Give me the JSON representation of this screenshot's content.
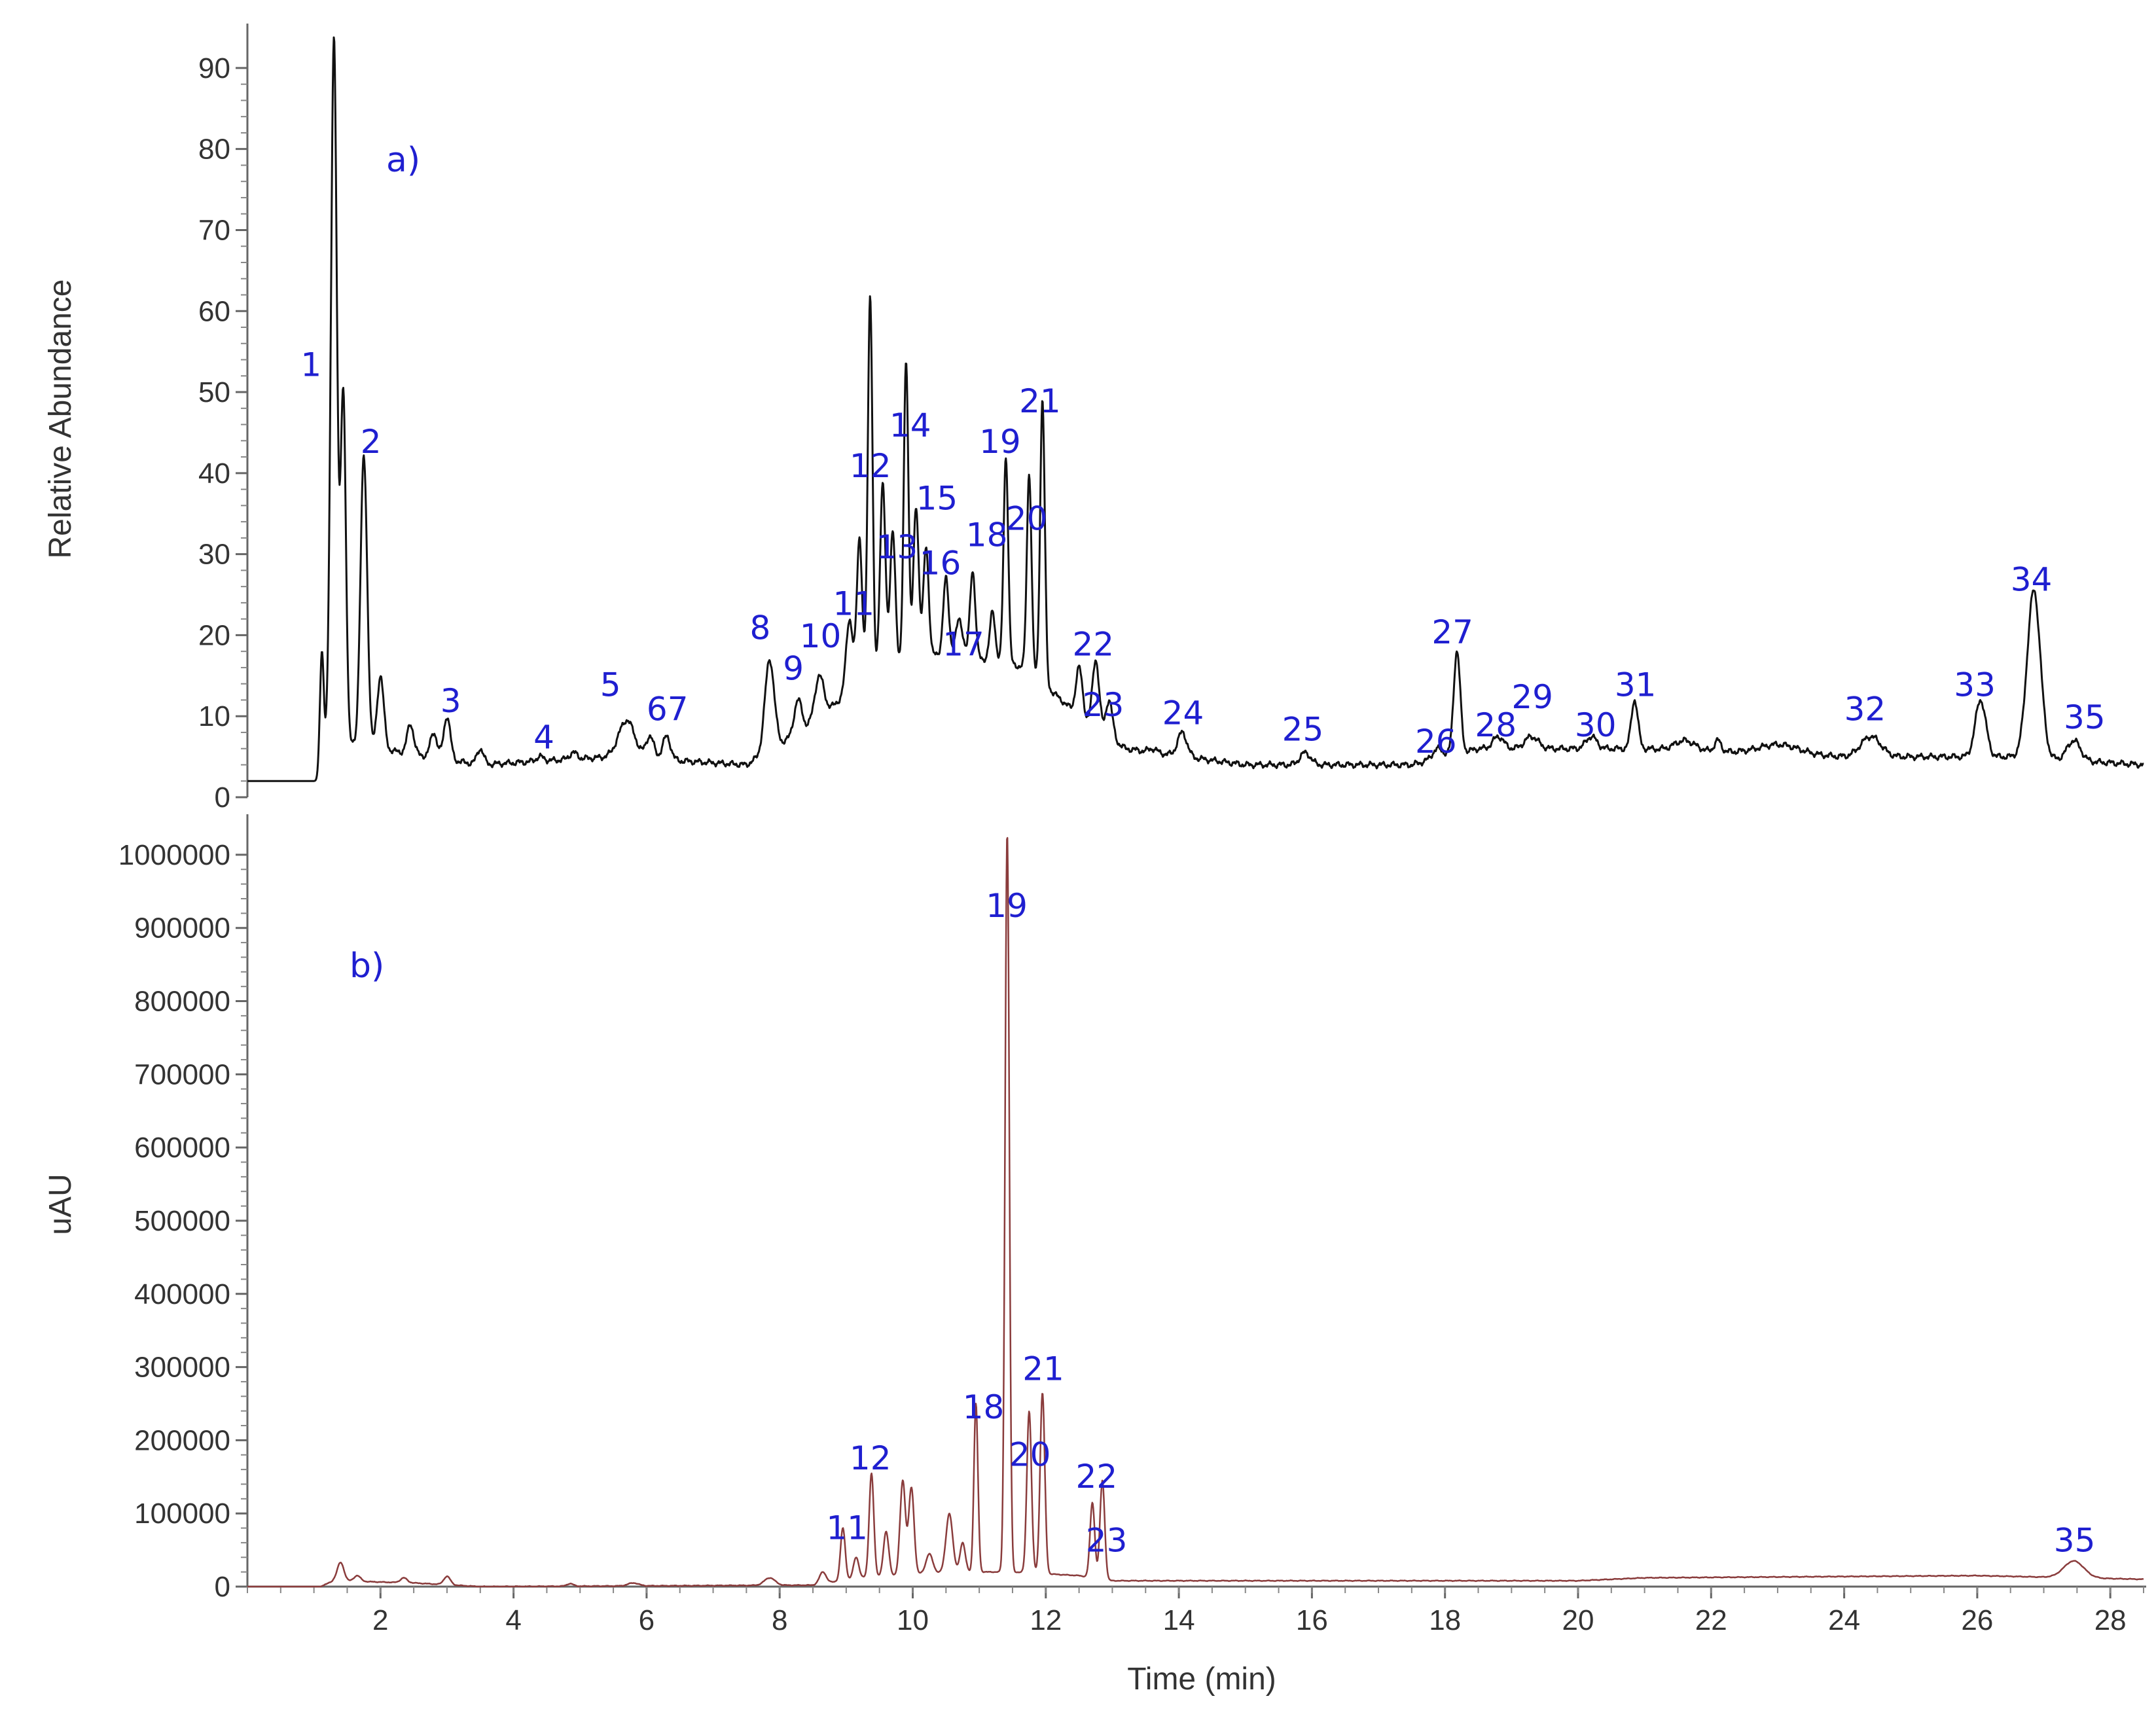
{
  "chart_data": [
    {
      "panel": "a)",
      "type": "line",
      "ylabel": "Relative Abundance",
      "xlabel": "",
      "xlim": [
        0,
        28.5
      ],
      "ylim": [
        0,
        95
      ],
      "ytick_values": [
        0,
        10,
        20,
        30,
        40,
        50,
        60,
        70,
        80,
        90
      ],
      "ytick_labels": [
        "0",
        "10",
        "20",
        "30",
        "40",
        "50",
        "60",
        "70",
        "80",
        "90"
      ],
      "line_color": "#111111",
      "baseline": [
        [
          0,
          2
        ],
        [
          1.1,
          2
        ],
        [
          1.2,
          7
        ],
        [
          3.5,
          4
        ],
        [
          5.5,
          5
        ],
        [
          7.5,
          4
        ],
        [
          8.5,
          9
        ],
        [
          9.3,
          15
        ],
        [
          10.5,
          18
        ],
        [
          11.7,
          16
        ],
        [
          12.5,
          10
        ],
        [
          13.2,
          6
        ],
        [
          15,
          4
        ],
        [
          17.5,
          4
        ],
        [
          18.5,
          6
        ],
        [
          21,
          6
        ],
        [
          24,
          5
        ],
        [
          26.5,
          5
        ],
        [
          28.5,
          4
        ]
      ],
      "peaks": [
        {
          "x": 1.12,
          "y": 18,
          "w": 0.03
        },
        {
          "x": 1.3,
          "y": 94,
          "w": 0.045
        },
        {
          "x": 1.44,
          "y": 50,
          "w": 0.04
        },
        {
          "x": 1.75,
          "y": 42,
          "w": 0.05
        },
        {
          "x": 2.0,
          "y": 15,
          "w": 0.05
        },
        {
          "x": 2.45,
          "y": 9,
          "w": 0.05
        },
        {
          "x": 2.8,
          "y": 8,
          "w": 0.05
        },
        {
          "x": 3.0,
          "y": 10,
          "w": 0.05
        },
        {
          "x": 3.5,
          "y": 6,
          "w": 0.05
        },
        {
          "x": 4.4,
          "y": 5,
          "w": 0.06
        },
        {
          "x": 4.9,
          "y": 5.5,
          "w": 0.06
        },
        {
          "x": 5.7,
          "y": 9.5,
          "w": 0.12
        },
        {
          "x": 6.05,
          "y": 7.5,
          "w": 0.06
        },
        {
          "x": 6.3,
          "y": 7.5,
          "w": 0.06
        },
        {
          "x": 7.85,
          "y": 17,
          "w": 0.07
        },
        {
          "x": 8.28,
          "y": 12,
          "w": 0.06
        },
        {
          "x": 8.6,
          "y": 15,
          "w": 0.07
        },
        {
          "x": 9.05,
          "y": 22,
          "w": 0.05
        },
        {
          "x": 9.2,
          "y": 32,
          "w": 0.04
        },
        {
          "x": 9.36,
          "y": 62,
          "w": 0.035
        },
        {
          "x": 9.55,
          "y": 39,
          "w": 0.04
        },
        {
          "x": 9.7,
          "y": 33,
          "w": 0.04
        },
        {
          "x": 9.9,
          "y": 54,
          "w": 0.035
        },
        {
          "x": 10.05,
          "y": 36,
          "w": 0.04
        },
        {
          "x": 10.2,
          "y": 31,
          "w": 0.04
        },
        {
          "x": 10.5,
          "y": 27,
          "w": 0.04
        },
        {
          "x": 10.7,
          "y": 22,
          "w": 0.05
        },
        {
          "x": 10.9,
          "y": 28,
          "w": 0.04
        },
        {
          "x": 11.2,
          "y": 23,
          "w": 0.04
        },
        {
          "x": 11.4,
          "y": 42,
          "w": 0.035
        },
        {
          "x": 11.75,
          "y": 40,
          "w": 0.035
        },
        {
          "x": 11.95,
          "y": 49,
          "w": 0.035
        },
        {
          "x": 12.5,
          "y": 16,
          "w": 0.05
        },
        {
          "x": 12.75,
          "y": 17,
          "w": 0.05
        },
        {
          "x": 12.95,
          "y": 12,
          "w": 0.05
        },
        {
          "x": 13.6,
          "y": 6,
          "w": 0.06
        },
        {
          "x": 14.05,
          "y": 8,
          "w": 0.07
        },
        {
          "x": 15.9,
          "y": 5.5,
          "w": 0.08
        },
        {
          "x": 17.9,
          "y": 6,
          "w": 0.08
        },
        {
          "x": 18.18,
          "y": 18,
          "w": 0.05
        },
        {
          "x": 18.8,
          "y": 7.5,
          "w": 0.08
        },
        {
          "x": 19.3,
          "y": 7.5,
          "w": 0.1
        },
        {
          "x": 20.2,
          "y": 7.5,
          "w": 0.08
        },
        {
          "x": 20.85,
          "y": 12,
          "w": 0.05
        },
        {
          "x": 21.6,
          "y": 7,
          "w": 0.15
        },
        {
          "x": 22.1,
          "y": 7,
          "w": 0.05
        },
        {
          "x": 23.0,
          "y": 6.5,
          "w": 0.3
        },
        {
          "x": 24.4,
          "y": 7.5,
          "w": 0.15
        },
        {
          "x": 26.05,
          "y": 12,
          "w": 0.08
        },
        {
          "x": 26.85,
          "y": 25.5,
          "w": 0.1
        },
        {
          "x": 27.45,
          "y": 7,
          "w": 0.1
        }
      ],
      "peak_labels": [
        {
          "text": "1",
          "x": 0.8,
          "y": 52
        },
        {
          "text": "2",
          "x": 1.7,
          "y": 42.5
        },
        {
          "text": "3",
          "x": 2.9,
          "y": 10.5
        },
        {
          "text": "4",
          "x": 4.3,
          "y": 6
        },
        {
          "text": "5",
          "x": 5.3,
          "y": 12.5
        },
        {
          "text": "67",
          "x": 6.0,
          "y": 9.5
        },
        {
          "text": "8",
          "x": 7.55,
          "y": 19.5
        },
        {
          "text": "9",
          "x": 8.05,
          "y": 14.5
        },
        {
          "text": "10",
          "x": 8.3,
          "y": 18.5
        },
        {
          "text": "11",
          "x": 8.8,
          "y": 22.5
        },
        {
          "text": "12",
          "x": 9.05,
          "y": 39.5
        },
        {
          "text": "13",
          "x": 9.45,
          "y": 29.5
        },
        {
          "text": "14",
          "x": 9.65,
          "y": 44.5
        },
        {
          "text": "15",
          "x": 10.05,
          "y": 35.5
        },
        {
          "text": "16",
          "x": 10.1,
          "y": 27.5
        },
        {
          "text": "17",
          "x": 10.45,
          "y": 17.5
        },
        {
          "text": "18",
          "x": 10.8,
          "y": 31
        },
        {
          "text": "19",
          "x": 11.0,
          "y": 42.5
        },
        {
          "text": "20",
          "x": 11.4,
          "y": 33
        },
        {
          "text": "21",
          "x": 11.6,
          "y": 47.5
        },
        {
          "text": "22",
          "x": 12.4,
          "y": 17.5
        },
        {
          "text": "23",
          "x": 12.55,
          "y": 10
        },
        {
          "text": "24",
          "x": 13.75,
          "y": 9
        },
        {
          "text": "25",
          "x": 15.55,
          "y": 7
        },
        {
          "text": "26",
          "x": 17.55,
          "y": 5.5
        },
        {
          "text": "27",
          "x": 17.8,
          "y": 19
        },
        {
          "text": "28",
          "x": 18.45,
          "y": 7.5
        },
        {
          "text": "29",
          "x": 19.0,
          "y": 11
        },
        {
          "text": "30",
          "x": 19.95,
          "y": 7.5
        },
        {
          "text": "31",
          "x": 20.55,
          "y": 12.5
        },
        {
          "text": "32",
          "x": 24.0,
          "y": 9.5
        },
        {
          "text": "33",
          "x": 25.65,
          "y": 12.5
        },
        {
          "text": "34",
          "x": 26.5,
          "y": 25.5
        },
        {
          "text": "35",
          "x": 27.3,
          "y": 8.5
        }
      ]
    },
    {
      "panel": "b)",
      "type": "line",
      "ylabel": "uAU",
      "xlabel": "Time (min)",
      "xlim": [
        0,
        28.5
      ],
      "ylim": [
        0,
        1050000
      ],
      "xtick_values": [
        2,
        4,
        6,
        8,
        10,
        12,
        14,
        16,
        18,
        20,
        22,
        24,
        26,
        28
      ],
      "xtick_labels": [
        "2",
        "4",
        "6",
        "8",
        "10",
        "12",
        "14",
        "16",
        "18",
        "20",
        "22",
        "24",
        "26",
        "28"
      ],
      "ytick_values": [
        0,
        100000,
        200000,
        300000,
        400000,
        500000,
        600000,
        700000,
        800000,
        900000,
        1000000
      ],
      "ytick_labels": [
        "0",
        "100000",
        "200000",
        "300000",
        "400000",
        "500000",
        "600000",
        "700000",
        "800000",
        "900000",
        "1000000"
      ],
      "line_color": "#8a3c3c",
      "baseline": [
        [
          0,
          0
        ],
        [
          1.1,
          0
        ],
        [
          1.3,
          8000
        ],
        [
          2.5,
          5000
        ],
        [
          3.5,
          0
        ],
        [
          8.5,
          2000
        ],
        [
          9.2,
          12000
        ],
        [
          10.5,
          20000
        ],
        [
          11.5,
          20000
        ],
        [
          12.5,
          15000
        ],
        [
          13.0,
          8000
        ],
        [
          14,
          8000
        ],
        [
          20,
          8000
        ],
        [
          21,
          12000
        ],
        [
          26,
          15000
        ],
        [
          28.5,
          10000
        ]
      ],
      "peaks": [
        {
          "x": 1.4,
          "y": 33000,
          "w": 0.05
        },
        {
          "x": 1.65,
          "y": 15000,
          "w": 0.05
        },
        {
          "x": 2.35,
          "y": 12000,
          "w": 0.05
        },
        {
          "x": 3.0,
          "y": 14000,
          "w": 0.05
        },
        {
          "x": 4.85,
          "y": 4000,
          "w": 0.05
        },
        {
          "x": 5.8,
          "y": 5000,
          "w": 0.08
        },
        {
          "x": 7.85,
          "y": 12000,
          "w": 0.08
        },
        {
          "x": 8.65,
          "y": 20000,
          "w": 0.05
        },
        {
          "x": 8.95,
          "y": 80000,
          "w": 0.035
        },
        {
          "x": 9.15,
          "y": 40000,
          "w": 0.04
        },
        {
          "x": 9.38,
          "y": 155000,
          "w": 0.035
        },
        {
          "x": 9.6,
          "y": 75000,
          "w": 0.04
        },
        {
          "x": 9.85,
          "y": 145000,
          "w": 0.04
        },
        {
          "x": 9.98,
          "y": 135000,
          "w": 0.04
        },
        {
          "x": 10.25,
          "y": 45000,
          "w": 0.05
        },
        {
          "x": 10.55,
          "y": 100000,
          "w": 0.05
        },
        {
          "x": 10.75,
          "y": 60000,
          "w": 0.04
        },
        {
          "x": 10.95,
          "y": 250000,
          "w": 0.03
        },
        {
          "x": 11.42,
          "y": 1030000,
          "w": 0.032
        },
        {
          "x": 11.75,
          "y": 240000,
          "w": 0.035
        },
        {
          "x": 11.95,
          "y": 265000,
          "w": 0.035
        },
        {
          "x": 12.7,
          "y": 115000,
          "w": 0.035
        },
        {
          "x": 12.85,
          "y": 145000,
          "w": 0.035
        },
        {
          "x": 16.0,
          "y": 5000,
          "w": 0.1
        },
        {
          "x": 22.2,
          "y": 8000,
          "w": 0.1
        },
        {
          "x": 26.0,
          "y": 5000,
          "w": 0.1
        },
        {
          "x": 27.45,
          "y": 35000,
          "w": 0.15
        }
      ],
      "peak_labels": [
        {
          "text": "11",
          "x": 8.7,
          "y": 65000
        },
        {
          "text": "12",
          "x": 9.05,
          "y": 160000
        },
        {
          "text": "18",
          "x": 10.75,
          "y": 230000
        },
        {
          "text": "19",
          "x": 11.1,
          "y": 915000
        },
        {
          "text": "20",
          "x": 11.45,
          "y": 165000
        },
        {
          "text": "21",
          "x": 11.65,
          "y": 282000
        },
        {
          "text": "22",
          "x": 12.45,
          "y": 135000
        },
        {
          "text": "23",
          "x": 12.6,
          "y": 48000
        },
        {
          "text": "35",
          "x": 27.15,
          "y": 48000
        }
      ]
    }
  ]
}
